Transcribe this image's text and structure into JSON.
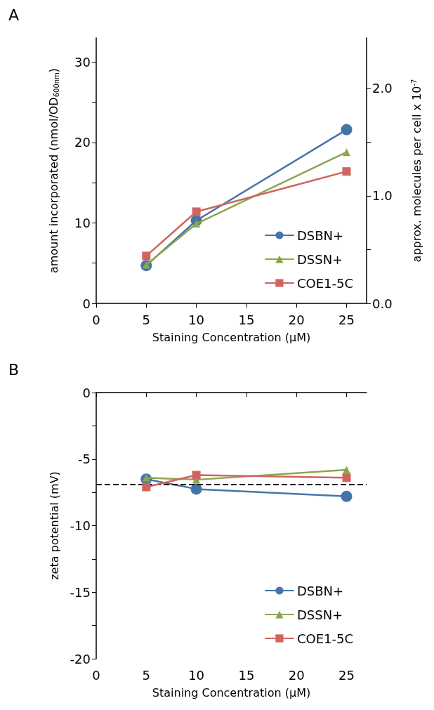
{
  "chart_data": [
    {
      "type": "line",
      "annotations": [
        "A"
      ],
      "xlabel": "Staining Concentration (μM)",
      "ylabel": "amount incorporated (nmol/OD$_{600nm}$)",
      "y2label": "approx. molecules per cell x 10$^{-7}$",
      "x": [
        5,
        10,
        25
      ],
      "xlim": [
        0,
        27
      ],
      "xticks": [
        0,
        5,
        10,
        15,
        20,
        25
      ],
      "ylim": [
        0,
        33
      ],
      "yticks": [
        0,
        {
          "value": 5,
          "label": null
        },
        10,
        {
          "value": 15,
          "label": null
        },
        20,
        {
          "value": 25,
          "label": null
        },
        30
      ],
      "y2lim": [
        0,
        2.47
      ],
      "y2ticks": [
        {
          "value": 0,
          "label": "0.0"
        },
        {
          "value": 0.5,
          "label": null
        },
        {
          "value": 1,
          "label": "1.0"
        },
        {
          "value": 1.5,
          "label": null
        },
        {
          "value": 2,
          "label": "2.0"
        }
      ],
      "series": [
        {
          "name": "DSBN+",
          "color": "#4674a8",
          "marker": "circle",
          "values": [
            4.7,
            10.3,
            21.6
          ]
        },
        {
          "name": "DSSN+",
          "color": "#8ca64c",
          "marker": "triangle",
          "values": [
            4.8,
            9.9,
            18.8
          ]
        },
        {
          "name": "COE1-5C",
          "color": "#d06461",
          "marker": "square",
          "values": [
            5.9,
            11.4,
            16.4
          ]
        }
      ],
      "grid": false,
      "legend": "bottom right",
      "line_style": "solid"
    },
    {
      "type": "line",
      "annotations": [
        "B"
      ],
      "xlabel": "Staining Concentration (μM)",
      "ylabel": "zeta potential (mV)",
      "x": [
        5,
        10,
        25
      ],
      "xlim": [
        0,
        27
      ],
      "xticks": [
        0,
        5,
        10,
        15,
        20,
        25
      ],
      "ylim": [
        -20,
        0
      ],
      "yticks": [
        -20,
        {
          "value": -17.5,
          "label": null
        },
        -15,
        {
          "value": -12.5,
          "label": null
        },
        -10,
        {
          "value": -7.5,
          "label": null
        },
        -5,
        {
          "value": -2.5,
          "label": null
        },
        0
      ],
      "series": [
        {
          "name": "DSBN+",
          "color": "#4674a8",
          "marker": "circle",
          "values": [
            -6.5,
            -7.25,
            -7.8
          ]
        },
        {
          "name": "DSSN+",
          "color": "#8ca64c",
          "marker": "triangle",
          "values": [
            -6.4,
            -6.55,
            -5.8
          ]
        },
        {
          "name": "COE1-5C",
          "color": "#d06461",
          "marker": "square",
          "values": [
            -7.1,
            -6.2,
            -6.4
          ]
        }
      ],
      "ref_lines": [
        {
          "axis": "y",
          "value": -6.9,
          "color": "#000000",
          "line_style": "dashed"
        }
      ],
      "grid": false,
      "legend": "bottom right",
      "line_style": "solid"
    }
  ]
}
